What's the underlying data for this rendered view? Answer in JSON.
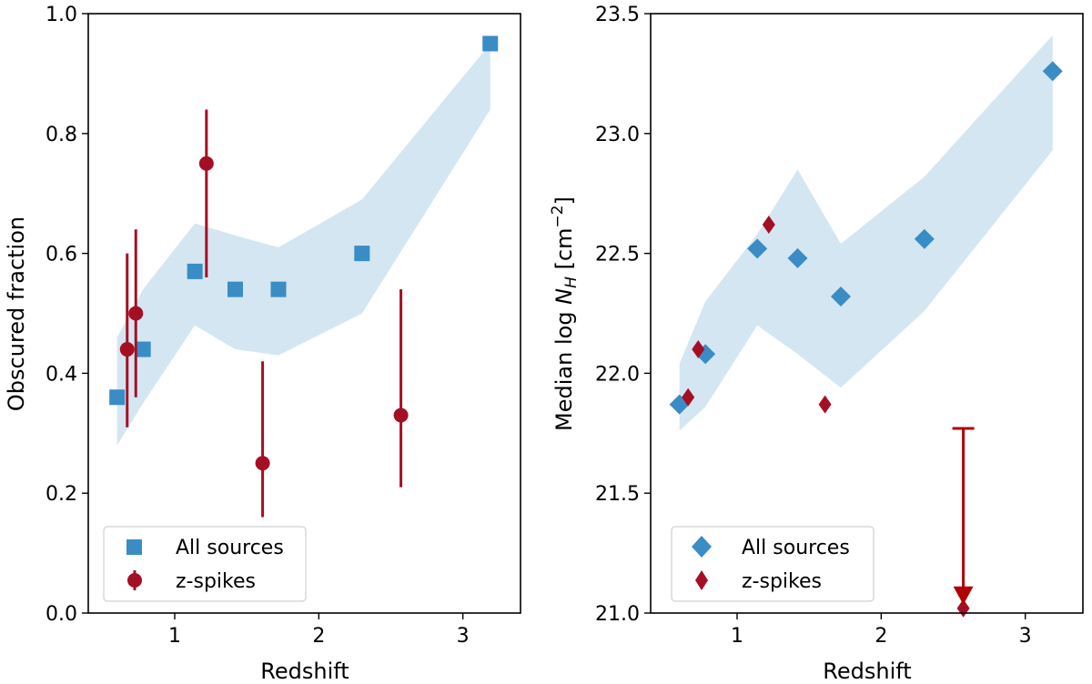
{
  "colors": {
    "blue": "#3a8cc4",
    "band": "#d4e6f1",
    "red": "#a50f24",
    "arrow": "#b00000"
  },
  "chart_data": [
    {
      "type": "scatter",
      "panel": "left",
      "xlabel": "Redshift",
      "ylabel": "Obscured fraction",
      "xlim": [
        0.4,
        3.4
      ],
      "ylim": [
        0.0,
        1.0
      ],
      "xticks": [
        1,
        2,
        3
      ],
      "xtick_labels": [
        "1",
        "2",
        "3"
      ],
      "yticks": [
        0.0,
        0.2,
        0.4,
        0.6,
        0.8,
        1.0
      ],
      "ytick_labels": [
        "0.0",
        "0.2",
        "0.4",
        "0.6",
        "0.8",
        "1.0"
      ],
      "legend": {
        "position": "lower-left",
        "entries": [
          "All sources",
          "z-spikes"
        ]
      },
      "band": {
        "x": [
          0.6,
          0.78,
          1.14,
          1.42,
          1.72,
          2.3,
          3.19
        ],
        "upper": [
          0.46,
          0.54,
          0.65,
          0.63,
          0.61,
          0.69,
          0.95
        ],
        "lower": [
          0.28,
          0.35,
          0.48,
          0.44,
          0.43,
          0.5,
          0.84
        ]
      },
      "series": [
        {
          "name": "All sources",
          "marker": "square",
          "x": [
            0.6,
            0.78,
            1.14,
            1.42,
            1.72,
            2.3,
            3.19
          ],
          "y": [
            0.36,
            0.44,
            0.57,
            0.54,
            0.54,
            0.6,
            0.95
          ]
        },
        {
          "name": "z-spikes",
          "marker": "circle",
          "x": [
            0.67,
            0.73,
            1.22,
            1.61,
            2.57
          ],
          "y": [
            0.44,
            0.5,
            0.75,
            0.25,
            0.33
          ],
          "err_low": [
            0.31,
            0.36,
            0.56,
            0.16,
            0.21
          ],
          "err_high": [
            0.6,
            0.64,
            0.84,
            0.42,
            0.54
          ]
        }
      ]
    },
    {
      "type": "scatter",
      "panel": "right",
      "xlabel": "Redshift",
      "ylabel": "Median log N_H [cm^-2]",
      "ylabel_parts": {
        "pre": "Median log ",
        "var": "N",
        "sub": "H",
        "bracket_open": " [cm",
        "sup": "−2",
        "bracket_close": "]"
      },
      "xlim": [
        0.4,
        3.4
      ],
      "ylim": [
        21.0,
        23.5
      ],
      "xticks": [
        1,
        2,
        3
      ],
      "xtick_labels": [
        "1",
        "2",
        "3"
      ],
      "yticks": [
        21.0,
        21.5,
        22.0,
        22.5,
        23.0,
        23.5
      ],
      "ytick_labels": [
        "21.0",
        "21.5",
        "22.0",
        "22.5",
        "23.0",
        "23.5"
      ],
      "legend": {
        "position": "lower-left",
        "entries": [
          "All sources",
          "z-spikes"
        ]
      },
      "band": {
        "x": [
          0.6,
          0.78,
          1.14,
          1.42,
          1.72,
          2.3,
          3.19
        ],
        "upper": [
          22.04,
          22.3,
          22.58,
          22.85,
          22.54,
          22.82,
          23.41
        ],
        "lower": [
          21.76,
          21.86,
          22.2,
          22.08,
          21.94,
          22.26,
          22.93
        ]
      },
      "series": [
        {
          "name": "All sources",
          "marker": "diamond",
          "x": [
            0.6,
            0.78,
            1.14,
            1.42,
            1.72,
            2.3,
            3.19
          ],
          "y": [
            21.87,
            22.08,
            22.52,
            22.48,
            22.32,
            22.56,
            23.26
          ]
        },
        {
          "name": "z-spikes",
          "marker": "thin-diamond",
          "x": [
            0.66,
            0.73,
            1.22,
            1.61,
            2.57
          ],
          "y": [
            21.9,
            22.1,
            22.62,
            21.87,
            21.02
          ]
        }
      ],
      "upper_limit": {
        "x": 2.57,
        "y_top": 21.77,
        "y_bottom": 21.02
      }
    }
  ]
}
